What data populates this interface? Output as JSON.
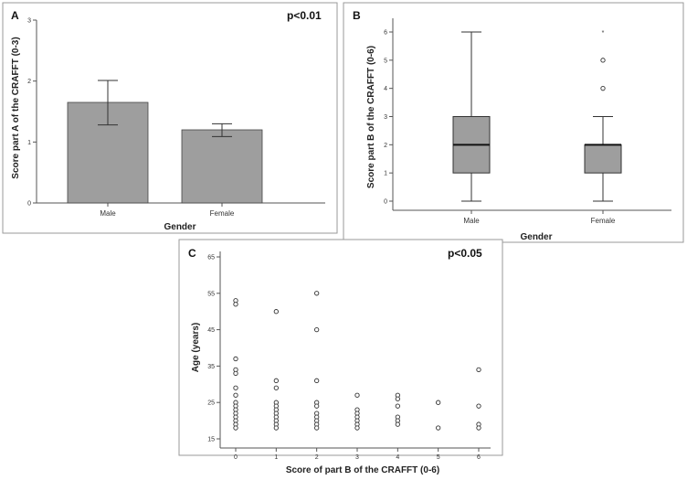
{
  "chart_data": [
    {
      "panel": "A",
      "type": "bar",
      "annotation": "p<0.01",
      "xlabel": "Gender",
      "ylabel": "Score part A of the CRAFFT (0-3)",
      "categories": [
        "Male",
        "Female"
      ],
      "values": [
        1.65,
        1.2
      ],
      "error_low": [
        1.28,
        1.09
      ],
      "error_high": [
        2.01,
        1.3
      ],
      "ylim": [
        0,
        3
      ],
      "yticks": [
        0,
        1,
        2,
        3
      ],
      "bar_color": "#9e9e9e",
      "grid": false
    },
    {
      "panel": "B",
      "type": "box",
      "xlabel": "Gender",
      "ylabel": "Score part B of the CRAFFT (0-6)",
      "categories": [
        "Male",
        "Female"
      ],
      "boxes": [
        {
          "min": 0,
          "q1": 1,
          "median": 2,
          "q3": 3,
          "max": 6,
          "outliers": [],
          "extremes": []
        },
        {
          "min": 0,
          "q1": 1,
          "median": 2,
          "q3": 2,
          "max": 3,
          "outliers": [
            4,
            5
          ],
          "extremes": [
            6
          ]
        }
      ],
      "ylim": [
        0,
        6
      ],
      "yticks": [
        0,
        1,
        2,
        3,
        4,
        5,
        6
      ],
      "box_color": "#9e9e9e",
      "grid": false
    },
    {
      "panel": "C",
      "type": "scatter",
      "annotation": "p<0.05",
      "xlabel": "Score of part B of the CRAFFT (0-6)",
      "ylabel": "Age (years)",
      "xticks": [
        0,
        1,
        2,
        3,
        4,
        5,
        6
      ],
      "yticks": [
        15,
        25,
        35,
        45,
        55,
        65
      ],
      "xlim": [
        -0.35,
        6.35
      ],
      "ylim": [
        13,
        68
      ],
      "marker": "open-circle",
      "grid": false,
      "points": [
        [
          0,
          53
        ],
        [
          0,
          52
        ],
        [
          0,
          37
        ],
        [
          0,
          34
        ],
        [
          0,
          33
        ],
        [
          0,
          29
        ],
        [
          0,
          27
        ],
        [
          0,
          25
        ],
        [
          0,
          24
        ],
        [
          0,
          23
        ],
        [
          0,
          22
        ],
        [
          0,
          21
        ],
        [
          0,
          20
        ],
        [
          0,
          19
        ],
        [
          0,
          18
        ],
        [
          1,
          50
        ],
        [
          1,
          31
        ],
        [
          1,
          29
        ],
        [
          1,
          25
        ],
        [
          1,
          24
        ],
        [
          1,
          23
        ],
        [
          1,
          22
        ],
        [
          1,
          21
        ],
        [
          1,
          20
        ],
        [
          1,
          19
        ],
        [
          1,
          18
        ],
        [
          2,
          55
        ],
        [
          2,
          45
        ],
        [
          2,
          31
        ],
        [
          2,
          25
        ],
        [
          2,
          24
        ],
        [
          2,
          22
        ],
        [
          2,
          21
        ],
        [
          2,
          20
        ],
        [
          2,
          19
        ],
        [
          2,
          18
        ],
        [
          3,
          27
        ],
        [
          3,
          23
        ],
        [
          3,
          22
        ],
        [
          3,
          21
        ],
        [
          3,
          20
        ],
        [
          3,
          19
        ],
        [
          3,
          18
        ],
        [
          4,
          27
        ],
        [
          4,
          26
        ],
        [
          4,
          24
        ],
        [
          4,
          21
        ],
        [
          4,
          20
        ],
        [
          4,
          19
        ],
        [
          5,
          25
        ],
        [
          5,
          18
        ],
        [
          6,
          34
        ],
        [
          6,
          24
        ],
        [
          6,
          19
        ],
        [
          6,
          18
        ]
      ]
    }
  ]
}
